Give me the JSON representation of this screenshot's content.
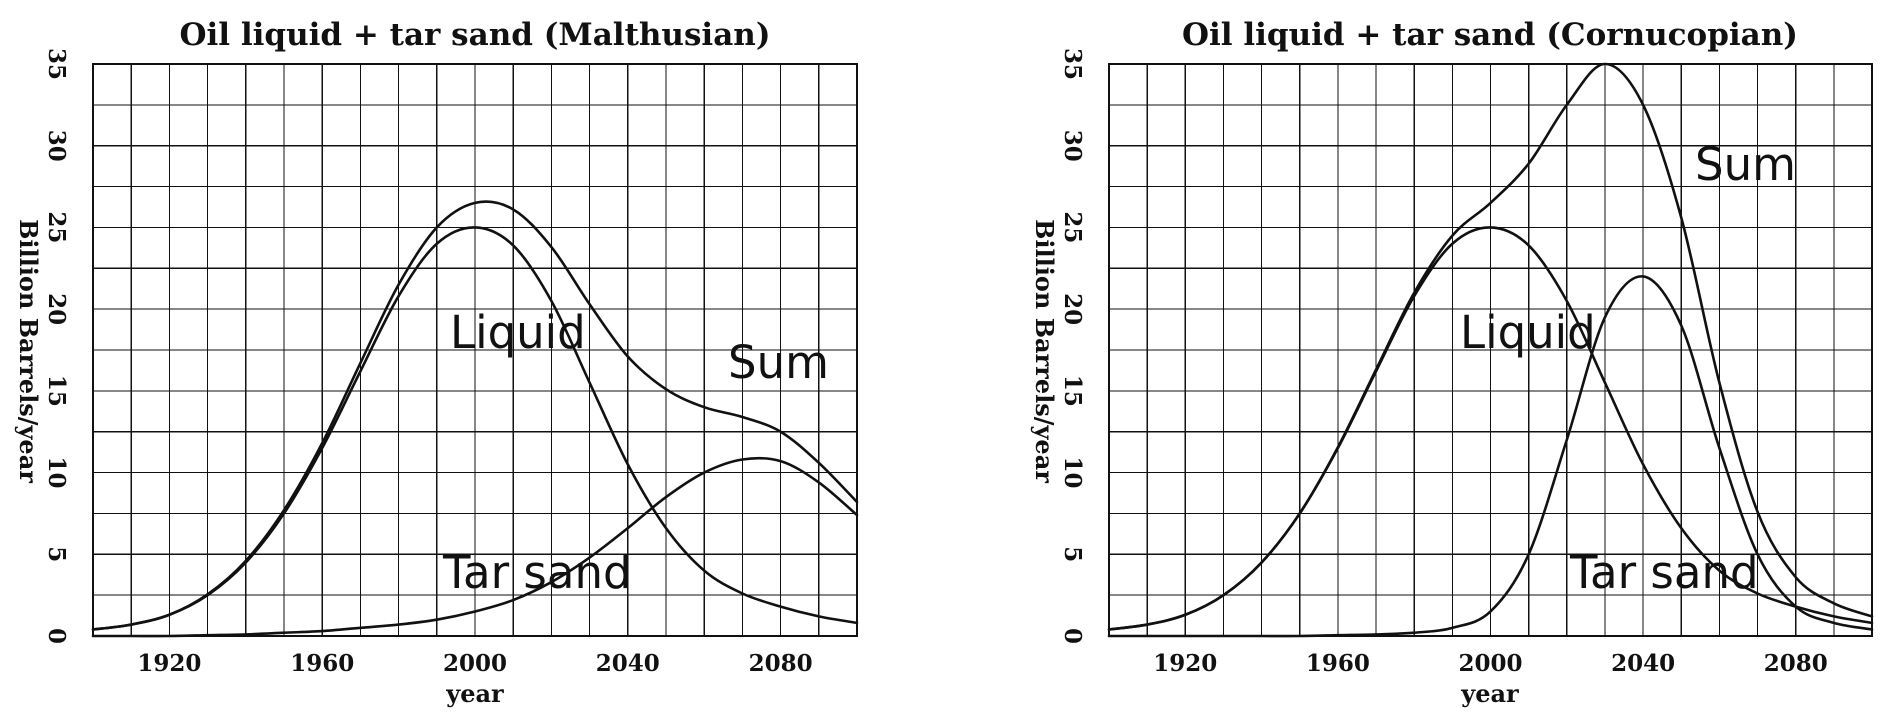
{
  "chart_data": [
    {
      "type": "line",
      "title": "Oil liquid + tar sand (Malthusian)",
      "xlabel": "year",
      "ylabel": "Billion Barrels/year",
      "xlim": [
        1900,
        2100
      ],
      "ylim": [
        0,
        35
      ],
      "grid": true,
      "x_ticks": [
        1920,
        1960,
        2000,
        2040,
        2080
      ],
      "y_ticks": [
        0,
        5,
        10,
        15,
        20,
        25,
        30,
        35
      ],
      "x_tick_labels": [
        "1920",
        "1960",
        "2000",
        "2040",
        "2080"
      ],
      "y_tick_labels": [
        "0",
        "5",
        "10",
        "15",
        "20",
        "25",
        "30",
        "35"
      ],
      "x": [
        1900,
        1910,
        1920,
        1930,
        1940,
        1950,
        1960,
        1970,
        1980,
        1990,
        2000,
        2010,
        2020,
        2030,
        2040,
        2050,
        2060,
        2070,
        2080,
        2090,
        2100
      ],
      "series": [
        {
          "name": "Liquid",
          "values": [
            0.4,
            0.7,
            1.3,
            2.5,
            4.5,
            7.5,
            11.5,
            16.2,
            20.8,
            24.0,
            25.0,
            23.9,
            20.5,
            15.5,
            10.5,
            6.6,
            4.0,
            2.6,
            1.8,
            1.2,
            0.8
          ]
        },
        {
          "name": "Tar sand",
          "values": [
            0.0,
            0.0,
            0.0,
            0.05,
            0.1,
            0.2,
            0.3,
            0.5,
            0.7,
            1.0,
            1.5,
            2.2,
            3.3,
            4.8,
            6.6,
            8.5,
            10.0,
            10.8,
            10.7,
            9.4,
            7.4
          ]
        },
        {
          "name": "Sum",
          "values": [
            0.4,
            0.7,
            1.3,
            2.55,
            4.6,
            7.7,
            11.8,
            16.7,
            21.5,
            25.0,
            26.5,
            26.1,
            23.8,
            20.3,
            17.1,
            15.1,
            14.0,
            13.4,
            12.5,
            10.6,
            8.2
          ]
        }
      ],
      "annotations": [
        "Liquid",
        "Sum",
        "Tar sand"
      ]
    },
    {
      "type": "line",
      "title": "Oil liquid + tar sand (Cornucopian)",
      "xlabel": "year",
      "ylabel": "Billion Barrels/year",
      "xlim": [
        1900,
        2100
      ],
      "ylim": [
        0,
        35
      ],
      "grid": true,
      "x_ticks": [
        1920,
        1960,
        2000,
        2040,
        2080
      ],
      "y_ticks": [
        0,
        5,
        10,
        15,
        20,
        25,
        30,
        35
      ],
      "x_tick_labels": [
        "1920",
        "1960",
        "2000",
        "2040",
        "2080"
      ],
      "y_tick_labels": [
        "0",
        "5",
        "10",
        "15",
        "20",
        "25",
        "30",
        "35"
      ],
      "x": [
        1900,
        1910,
        1920,
        1930,
        1940,
        1950,
        1960,
        1970,
        1980,
        1990,
        2000,
        2010,
        2020,
        2030,
        2040,
        2050,
        2060,
        2070,
        2080,
        2090,
        2100
      ],
      "series": [
        {
          "name": "Liquid",
          "values": [
            0.4,
            0.7,
            1.3,
            2.5,
            4.5,
            7.5,
            11.5,
            16.2,
            20.8,
            24.0,
            25.0,
            23.9,
            20.5,
            15.5,
            10.5,
            6.6,
            4.0,
            2.6,
            1.8,
            1.2,
            0.8
          ]
        },
        {
          "name": "Tar sand",
          "values": [
            0.0,
            0.0,
            0.0,
            0.0,
            0.0,
            0.0,
            0.05,
            0.1,
            0.2,
            0.5,
            1.5,
            5.0,
            12.0,
            19.5,
            22.0,
            19.0,
            11.5,
            5.0,
            1.8,
            0.8,
            0.4
          ]
        },
        {
          "name": "Sum",
          "values": [
            0.4,
            0.7,
            1.3,
            2.5,
            4.5,
            7.5,
            11.55,
            16.3,
            21.0,
            24.5,
            26.5,
            28.9,
            32.5,
            35.0,
            32.5,
            25.6,
            15.5,
            7.6,
            3.6,
            2.0,
            1.2
          ]
        }
      ],
      "annotations": [
        "Liquid",
        "Sum",
        "Tar sand"
      ]
    }
  ]
}
